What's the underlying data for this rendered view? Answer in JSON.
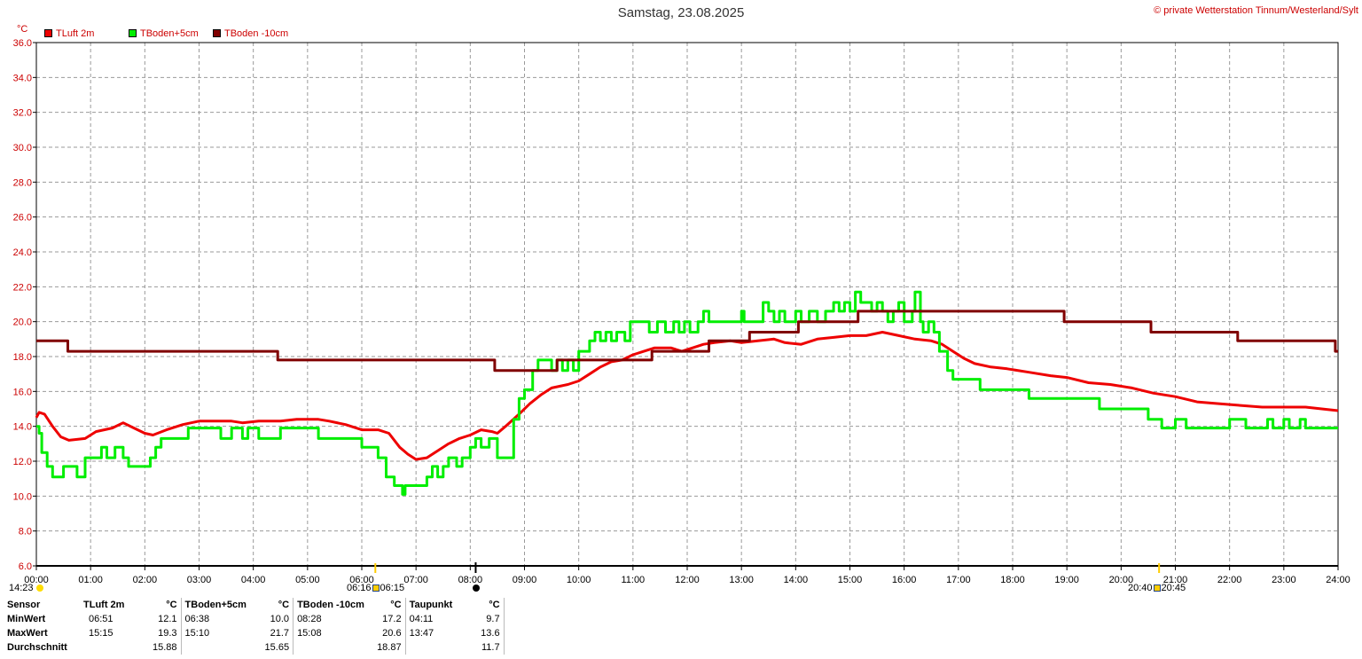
{
  "title": "Samstag, 23.08.2025",
  "copyright": "© private Wetterstation Tinnum/Westerland/Sylt",
  "unit": "°C",
  "legend": [
    {
      "label": "TLuft 2m",
      "color": "#ee0000"
    },
    {
      "label": "TBoden+5cm",
      "color": "#00ee00"
    },
    {
      "label": "TBoden -10cm",
      "color": "#800000"
    }
  ],
  "sun": {
    "moonset": "14:23",
    "sunrise_a": "06:16",
    "sunrise_b": "06:15",
    "sunset_a": "20:40",
    "sunset_b": "20:45"
  },
  "chart_data": {
    "type": "line",
    "title": "Samstag, 23.08.2025",
    "ylabel": "°C",
    "xlim": [
      0,
      24
    ],
    "ylim": [
      6,
      36
    ],
    "grid": true,
    "y_ticks": [
      "6.0",
      "8.0",
      "10.0",
      "12.0",
      "14.0",
      "16.0",
      "18.0",
      "20.0",
      "22.0",
      "24.0",
      "26.0",
      "28.0",
      "30.0",
      "32.0",
      "34.0",
      "36.0"
    ],
    "x_ticks": [
      "00:00",
      "01:00",
      "02:00",
      "03:00",
      "04:00",
      "05:00",
      "06:00",
      "07:00",
      "08:00",
      "09:00",
      "10:00",
      "11:00",
      "12:00",
      "13:00",
      "14:00",
      "15:00",
      "16:00",
      "17:00",
      "18:00",
      "19:00",
      "20:00",
      "21:00",
      "22:00",
      "23:00",
      "24:00"
    ],
    "series": [
      {
        "name": "TLuft 2m",
        "color": "#ee0000",
        "step": false,
        "points": [
          [
            0,
            14.5
          ],
          [
            0.05,
            14.8
          ],
          [
            0.15,
            14.7
          ],
          [
            0.3,
            14.0
          ],
          [
            0.45,
            13.4
          ],
          [
            0.6,
            13.2
          ],
          [
            0.9,
            13.3
          ],
          [
            1.1,
            13.7
          ],
          [
            1.4,
            13.9
          ],
          [
            1.6,
            14.2
          ],
          [
            1.8,
            13.9
          ],
          [
            2.0,
            13.6
          ],
          [
            2.15,
            13.5
          ],
          [
            2.4,
            13.8
          ],
          [
            2.7,
            14.1
          ],
          [
            3.0,
            14.3
          ],
          [
            3.6,
            14.3
          ],
          [
            3.8,
            14.2
          ],
          [
            4.1,
            14.3
          ],
          [
            4.5,
            14.3
          ],
          [
            4.8,
            14.4
          ],
          [
            5.2,
            14.4
          ],
          [
            5.4,
            14.3
          ],
          [
            5.7,
            14.1
          ],
          [
            6.0,
            13.8
          ],
          [
            6.3,
            13.8
          ],
          [
            6.5,
            13.6
          ],
          [
            6.7,
            12.8
          ],
          [
            6.85,
            12.4
          ],
          [
            7.0,
            12.1
          ],
          [
            7.2,
            12.2
          ],
          [
            7.4,
            12.6
          ],
          [
            7.6,
            13.0
          ],
          [
            7.8,
            13.3
          ],
          [
            8.0,
            13.5
          ],
          [
            8.2,
            13.8
          ],
          [
            8.4,
            13.7
          ],
          [
            8.5,
            13.6
          ],
          [
            8.65,
            14.0
          ],
          [
            8.9,
            14.7
          ],
          [
            9.1,
            15.3
          ],
          [
            9.3,
            15.8
          ],
          [
            9.5,
            16.2
          ],
          [
            9.8,
            16.4
          ],
          [
            10.0,
            16.6
          ],
          [
            10.2,
            17.0
          ],
          [
            10.4,
            17.4
          ],
          [
            10.6,
            17.7
          ],
          [
            10.8,
            17.8
          ],
          [
            11.0,
            18.1
          ],
          [
            11.2,
            18.3
          ],
          [
            11.4,
            18.5
          ],
          [
            11.7,
            18.5
          ],
          [
            11.9,
            18.3
          ],
          [
            12.1,
            18.5
          ],
          [
            12.3,
            18.7
          ],
          [
            12.5,
            18.8
          ],
          [
            12.8,
            18.9
          ],
          [
            13.0,
            18.8
          ],
          [
            13.3,
            18.9
          ],
          [
            13.6,
            19.0
          ],
          [
            13.8,
            18.8
          ],
          [
            14.1,
            18.7
          ],
          [
            14.4,
            19.0
          ],
          [
            14.7,
            19.1
          ],
          [
            15.0,
            19.2
          ],
          [
            15.3,
            19.2
          ],
          [
            15.6,
            19.4
          ],
          [
            15.9,
            19.2
          ],
          [
            16.2,
            19.0
          ],
          [
            16.5,
            18.9
          ],
          [
            16.7,
            18.7
          ],
          [
            16.9,
            18.3
          ],
          [
            17.1,
            17.9
          ],
          [
            17.3,
            17.6
          ],
          [
            17.6,
            17.4
          ],
          [
            17.9,
            17.3
          ],
          [
            18.3,
            17.1
          ],
          [
            18.7,
            16.9
          ],
          [
            19.0,
            16.8
          ],
          [
            19.4,
            16.5
          ],
          [
            19.8,
            16.4
          ],
          [
            20.2,
            16.2
          ],
          [
            20.6,
            15.9
          ],
          [
            21.0,
            15.7
          ],
          [
            21.4,
            15.4
          ],
          [
            21.8,
            15.3
          ],
          [
            22.2,
            15.2
          ],
          [
            22.6,
            15.1
          ],
          [
            23.0,
            15.1
          ],
          [
            23.4,
            15.1
          ],
          [
            23.7,
            15.0
          ],
          [
            24.0,
            14.9
          ]
        ]
      },
      {
        "name": "TBoden+5cm",
        "color": "#00ee00",
        "step": true,
        "points": [
          [
            0,
            14.0
          ],
          [
            0.05,
            13.6
          ],
          [
            0.1,
            12.5
          ],
          [
            0.2,
            11.7
          ],
          [
            0.3,
            11.1
          ],
          [
            0.5,
            11.7
          ],
          [
            0.75,
            11.1
          ],
          [
            0.9,
            12.2
          ],
          [
            1.2,
            12.8
          ],
          [
            1.3,
            12.2
          ],
          [
            1.45,
            12.8
          ],
          [
            1.6,
            12.2
          ],
          [
            1.7,
            11.7
          ],
          [
            2.1,
            12.2
          ],
          [
            2.2,
            12.8
          ],
          [
            2.3,
            13.3
          ],
          [
            2.8,
            13.9
          ],
          [
            3.4,
            13.3
          ],
          [
            3.6,
            13.9
          ],
          [
            3.8,
            13.3
          ],
          [
            3.9,
            13.9
          ],
          [
            4.1,
            13.3
          ],
          [
            4.5,
            13.9
          ],
          [
            5.2,
            13.3
          ],
          [
            6.0,
            12.8
          ],
          [
            6.3,
            12.2
          ],
          [
            6.45,
            11.1
          ],
          [
            6.6,
            10.6
          ],
          [
            6.75,
            10.1
          ],
          [
            6.8,
            10.6
          ],
          [
            7.2,
            11.1
          ],
          [
            7.3,
            11.7
          ],
          [
            7.4,
            11.1
          ],
          [
            7.5,
            11.7
          ],
          [
            7.6,
            12.2
          ],
          [
            7.75,
            11.7
          ],
          [
            7.85,
            12.2
          ],
          [
            8.0,
            12.8
          ],
          [
            8.1,
            13.3
          ],
          [
            8.2,
            12.8
          ],
          [
            8.35,
            13.3
          ],
          [
            8.5,
            12.2
          ],
          [
            8.8,
            14.4
          ],
          [
            8.9,
            15.6
          ],
          [
            9.0,
            16.1
          ],
          [
            9.15,
            17.2
          ],
          [
            9.25,
            17.8
          ],
          [
            9.5,
            17.2
          ],
          [
            9.6,
            17.8
          ],
          [
            9.7,
            17.2
          ],
          [
            9.8,
            17.8
          ],
          [
            9.9,
            17.2
          ],
          [
            10.0,
            18.3
          ],
          [
            10.2,
            18.9
          ],
          [
            10.3,
            19.4
          ],
          [
            10.4,
            18.9
          ],
          [
            10.5,
            19.4
          ],
          [
            10.6,
            18.9
          ],
          [
            10.7,
            19.4
          ],
          [
            10.85,
            18.9
          ],
          [
            10.95,
            20.0
          ],
          [
            11.3,
            19.4
          ],
          [
            11.45,
            20.0
          ],
          [
            11.6,
            19.4
          ],
          [
            11.75,
            20.0
          ],
          [
            11.85,
            19.4
          ],
          [
            11.95,
            20.0
          ],
          [
            12.05,
            19.4
          ],
          [
            12.2,
            20.0
          ],
          [
            12.3,
            20.6
          ],
          [
            12.4,
            20.0
          ],
          [
            13.0,
            20.6
          ],
          [
            13.05,
            20.0
          ],
          [
            13.4,
            21.1
          ],
          [
            13.5,
            20.6
          ],
          [
            13.6,
            20.0
          ],
          [
            13.7,
            20.6
          ],
          [
            13.8,
            20.0
          ],
          [
            14.0,
            20.6
          ],
          [
            14.1,
            20.0
          ],
          [
            14.25,
            20.6
          ],
          [
            14.4,
            20.0
          ],
          [
            14.55,
            20.6
          ],
          [
            14.7,
            21.1
          ],
          [
            14.8,
            20.6
          ],
          [
            14.9,
            21.1
          ],
          [
            15.0,
            20.6
          ],
          [
            15.1,
            21.7
          ],
          [
            15.2,
            21.1
          ],
          [
            15.4,
            20.6
          ],
          [
            15.5,
            21.1
          ],
          [
            15.6,
            20.6
          ],
          [
            15.7,
            20.0
          ],
          [
            15.8,
            20.6
          ],
          [
            15.9,
            21.1
          ],
          [
            16.0,
            20.0
          ],
          [
            16.15,
            20.6
          ],
          [
            16.2,
            21.7
          ],
          [
            16.3,
            20.0
          ],
          [
            16.35,
            19.4
          ],
          [
            16.45,
            20.0
          ],
          [
            16.55,
            19.4
          ],
          [
            16.65,
            18.3
          ],
          [
            16.8,
            17.2
          ],
          [
            16.9,
            16.7
          ],
          [
            17.4,
            16.1
          ],
          [
            18.3,
            15.6
          ],
          [
            19.6,
            15.0
          ],
          [
            20.5,
            14.4
          ],
          [
            20.75,
            13.9
          ],
          [
            21.0,
            14.4
          ],
          [
            21.2,
            13.9
          ],
          [
            22.0,
            14.4
          ],
          [
            22.3,
            13.9
          ],
          [
            22.7,
            14.4
          ],
          [
            22.8,
            13.9
          ],
          [
            23.0,
            14.4
          ],
          [
            23.1,
            13.9
          ],
          [
            23.3,
            14.4
          ],
          [
            23.4,
            13.9
          ],
          [
            24.0,
            13.9
          ]
        ]
      },
      {
        "name": "TBoden -10cm",
        "color": "#800000",
        "step": true,
        "points": [
          [
            0,
            18.9
          ],
          [
            0.58,
            18.3
          ],
          [
            4.45,
            17.8
          ],
          [
            8.45,
            17.2
          ],
          [
            9.6,
            17.8
          ],
          [
            11.35,
            18.3
          ],
          [
            12.4,
            18.9
          ],
          [
            13.15,
            19.4
          ],
          [
            14.05,
            20.0
          ],
          [
            15.15,
            20.6
          ],
          [
            18.95,
            20.0
          ],
          [
            20.55,
            19.4
          ],
          [
            22.15,
            18.9
          ],
          [
            23.95,
            18.3
          ],
          [
            24.0,
            18.3
          ]
        ]
      }
    ]
  },
  "stats": {
    "headers": [
      "Sensor",
      "TLuft 2m",
      "°C",
      "TBoden+5cm",
      "°C",
      "TBoden -10cm",
      "°C",
      "Taupunkt",
      "°C"
    ],
    "rows": [
      [
        "MinWert",
        "06:51",
        "12.1",
        "06:38",
        "10.0",
        "08:28",
        "17.2",
        "04:11",
        "9.7"
      ],
      [
        "MaxWert",
        "15:15",
        "19.3",
        "15:10",
        "21.7",
        "15:08",
        "20.6",
        "13:47",
        "13.6"
      ],
      [
        "Durchschnitt",
        "",
        "15.88",
        "",
        "15.65",
        "",
        "18.87",
        "",
        "11.7"
      ]
    ]
  }
}
